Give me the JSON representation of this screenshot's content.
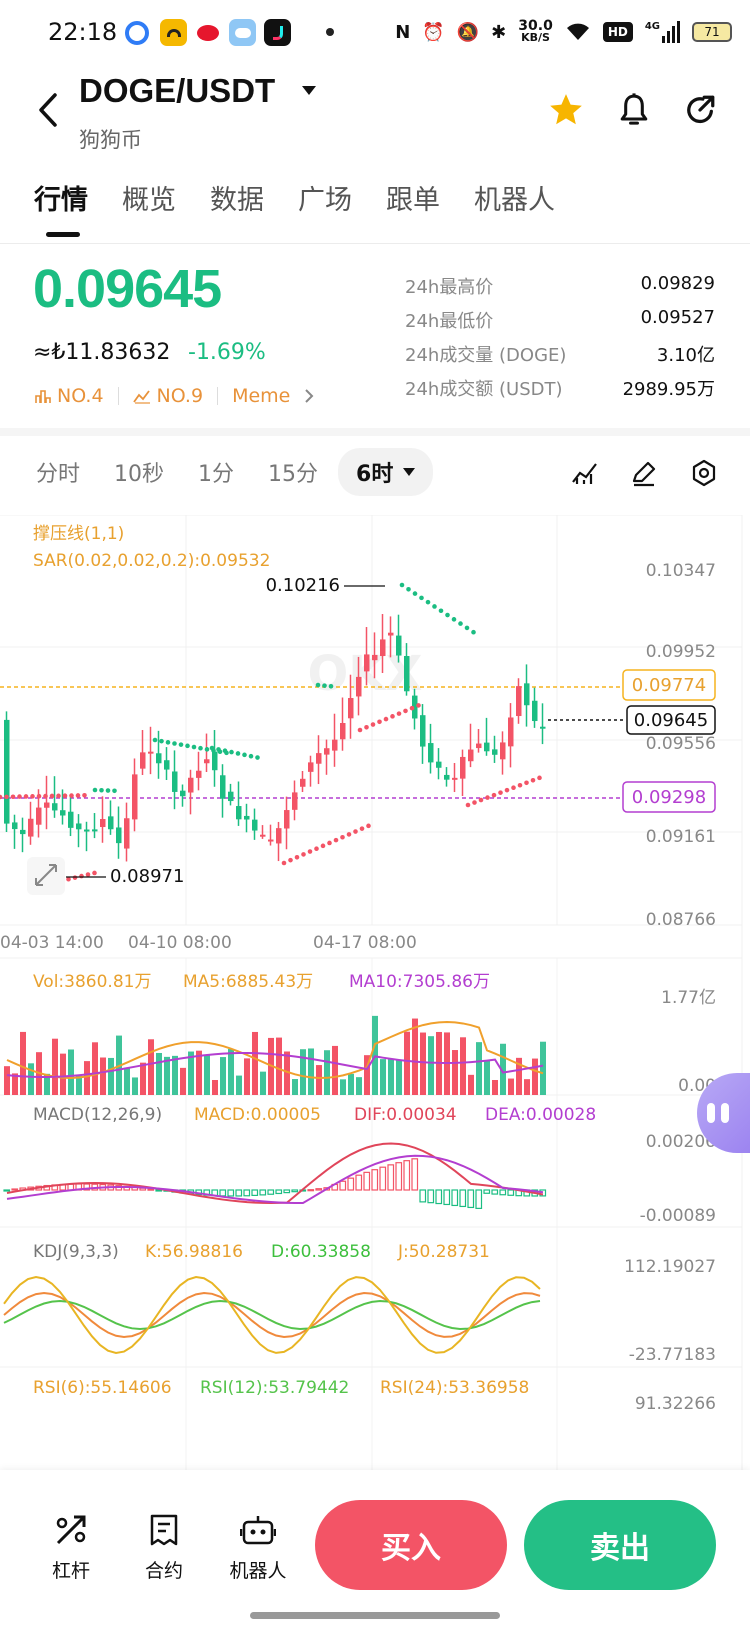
{
  "status_bar": {
    "time": "22:18",
    "net_speed_value": "30.0",
    "net_speed_unit": "KB/S",
    "network": "4G",
    "battery": "71",
    "hd": "HD"
  },
  "header": {
    "pair": "DOGE/USDT",
    "subtitle": "狗狗币",
    "favorite_color": "#f7b500"
  },
  "tabs": [
    {
      "label": "行情",
      "active": true
    },
    {
      "label": "概览"
    },
    {
      "label": "数据"
    },
    {
      "label": "广场"
    },
    {
      "label": "跟单"
    },
    {
      "label": "机器人"
    }
  ],
  "price": {
    "last": "0.09645",
    "fiat": "≈₺11.83632",
    "change": "-1.69%",
    "rank1": "NO.4",
    "rank2": "NO.9",
    "tag": "Meme",
    "color_up": "#f35466",
    "color_down": "#1bbd82"
  },
  "stats": [
    {
      "label": "24h最高价",
      "value": "0.09829"
    },
    {
      "label": "24h最低价",
      "value": "0.09527"
    },
    {
      "label": "24h成交量 (DOGE)",
      "value": "3.10亿"
    },
    {
      "label": "24h成交额 (USDT)",
      "value": "2989.95万"
    }
  ],
  "timeframes": [
    {
      "label": "分时"
    },
    {
      "label": "10秒"
    },
    {
      "label": "1分"
    },
    {
      "label": "15分"
    },
    {
      "label": "6时",
      "active": true
    }
  ],
  "chart": {
    "indicator1": "撑压线(1,1)",
    "indicator2": "SAR(0.02,0.02,0.2):0.09532",
    "y_ticks": [
      "0.10347",
      "0.09952",
      "0.09556",
      "0.09161",
      "0.08766"
    ],
    "high_label": "0.10216",
    "low_label": "0.08971",
    "resistance": "0.09774",
    "current": "0.09645",
    "support": "0.09298",
    "x_ticks": [
      "04-03 14:00",
      "04-10 08:00",
      "04-17 08:00"
    ],
    "watermark": "OKX"
  },
  "volume": {
    "vol": "Vol:3860.81万",
    "ma5": "MA5:6885.43万",
    "ma10": "MA10:7305.86万",
    "top": "1.77亿",
    "bottom": "0.00"
  },
  "macd": {
    "title": "MACD(12,26,9)",
    "macd": "MACD:0.00005",
    "dif": "DIF:0.00034",
    "dea": "DEA:0.00028",
    "top": "0.00206",
    "bottom": "-0.00089"
  },
  "kdj": {
    "title": "KDJ(9,3,3)",
    "k": "K:56.98816",
    "d": "D:60.33858",
    "j": "J:50.28731",
    "top": "112.19027",
    "bottom": "-23.77183"
  },
  "rsi": {
    "r6": "RSI(6):55.14606",
    "r12": "RSI(12):53.79442",
    "r24": "RSI(24):53.36958",
    "top": "91.32266"
  },
  "bottom_bar": {
    "leverage": "杠杆",
    "contract": "合约",
    "robot": "机器人",
    "buy": "买入",
    "sell": "卖出"
  }
}
